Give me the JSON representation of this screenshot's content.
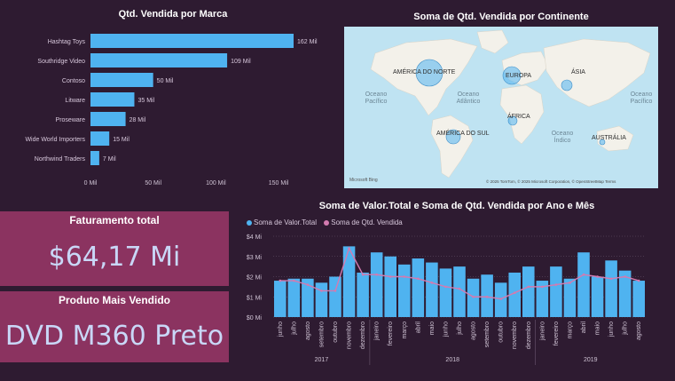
{
  "bar_chart": {
    "title": "Qtd. Vendida por Marca",
    "categories": [
      "Hashtag Toys",
      "Southridge Video",
      "Contoso",
      "Litware",
      "Proseware",
      "Wide World Importers",
      "Northwind Traders"
    ],
    "values": [
      162,
      109,
      50,
      35,
      28,
      15,
      7
    ],
    "value_labels": [
      "162 Mil",
      "109 Mil",
      "50 Mil",
      "35 Mil",
      "28 Mil",
      "15 Mil",
      "7 Mil"
    ],
    "x_ticks": [
      "0 Mil",
      "50 Mil",
      "100 Mil",
      "150 Mil"
    ],
    "color": "#4fb3f0"
  },
  "map": {
    "title": "Soma de Qtd. Vendida por Continente",
    "labels": {
      "north_america": "AMÉRICA DO NORTE",
      "europe": "EUROPA",
      "asia": "ÁSIA",
      "africa": "ÁFRICA",
      "south_america": "AMÉRICA DO SUL",
      "australia": "AUSTRÁLIA"
    },
    "oceans": {
      "pacific_left": "Oceano Pacífico",
      "atlantic": "Oceano Atlântico",
      "pacific_right": "Oceano Pacífico",
      "indian": "Oceano Índico"
    },
    "logo": "Microsoft Bing",
    "attribution": "© 2025 TomTom, © 2025 Microsoft Corporation, © OpenStreetMap Terms"
  },
  "cards": {
    "revenue_title": "Faturamento total",
    "revenue_value": "$64,17 Mi",
    "product_title": "Produto Mais Vendido",
    "product_value": "DVD M360 Preto"
  },
  "combo_chart": {
    "title": "Soma de Valor.Total e Soma de Qtd. Vendida por Ano e Mês",
    "legend": [
      "Soma de Valor.Total",
      "Soma de Qtd. Vendida"
    ],
    "colors": {
      "bar": "#4fb3f0",
      "line": "#d37bb0"
    },
    "y_ticks": [
      "$0 Mi",
      "$1 Mi",
      "$2 Mi",
      "$3 Mi",
      "$4 Mi"
    ],
    "years": [
      "2017",
      "2018",
      "2019"
    ],
    "months": [
      "junho",
      "julho",
      "agosto",
      "setembro",
      "outubro",
      "novembro",
      "dezembro",
      "janeiro",
      "fevereiro",
      "março",
      "abril",
      "maio",
      "junho",
      "julho",
      "agosto",
      "setembro",
      "outubro",
      "novembro",
      "dezembro",
      "janeiro",
      "fevereiro",
      "março",
      "abril",
      "maio",
      "junho",
      "julho",
      "agosto"
    ]
  },
  "chart_data": [
    {
      "type": "bar",
      "title": "Qtd. Vendida por Marca",
      "categories": [
        "Hashtag Toys",
        "Southridge Video",
        "Contoso",
        "Litware",
        "Proseware",
        "Wide World Importers",
        "Northwind Traders"
      ],
      "values": [
        162,
        109,
        50,
        35,
        28,
        15,
        7
      ],
      "unit": "Mil",
      "xlim": [
        0,
        165
      ]
    },
    {
      "type": "bar",
      "title": "Soma de Valor.Total e Soma de Qtd. Vendida por Ano e Mês",
      "categories": [
        "junho 2017",
        "julho 2017",
        "agosto 2017",
        "setembro 2017",
        "outubro 2017",
        "novembro 2017",
        "dezembro 2017",
        "janeiro 2018",
        "fevereiro 2018",
        "março 2018",
        "abril 2018",
        "maio 2018",
        "junho 2018",
        "julho 2018",
        "agosto 2018",
        "setembro 2018",
        "outubro 2018",
        "novembro 2018",
        "dezembro 2018",
        "janeiro 2019",
        "fevereiro 2019",
        "março 2019",
        "abril 2019",
        "maio 2019",
        "junho 2019",
        "julho 2019",
        "agosto 2019"
      ],
      "series": [
        {
          "name": "Soma de Valor.Total",
          "values": [
            1.8,
            1.9,
            1.9,
            1.7,
            2.0,
            3.5,
            2.2,
            3.2,
            3.0,
            2.6,
            2.9,
            2.7,
            2.4,
            2.5,
            1.9,
            2.1,
            1.7,
            2.2,
            2.5,
            1.8,
            2.5,
            1.9,
            3.2,
            2.0,
            2.8,
            2.3,
            1.8
          ]
        },
        {
          "name": "Soma de Qtd. Vendida",
          "values": [
            1.8,
            1.8,
            1.6,
            1.3,
            1.3,
            3.4,
            2.1,
            2.1,
            2.0,
            2.0,
            1.9,
            1.7,
            1.5,
            1.4,
            1.0,
            1.0,
            0.9,
            1.2,
            1.5,
            1.5,
            1.6,
            1.7,
            2.1,
            2.0,
            1.9,
            2.0,
            1.8
          ]
        }
      ],
      "ylim": [
        0,
        4
      ]
    }
  ]
}
